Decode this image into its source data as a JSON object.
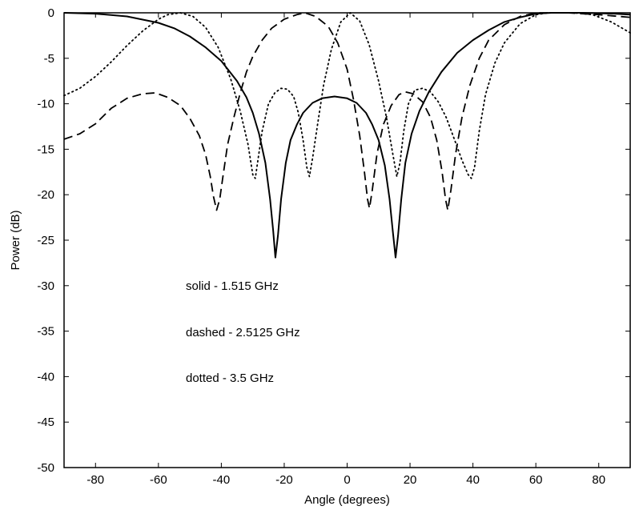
{
  "chart_data": {
    "type": "line",
    "title": "",
    "xlabel": "Angle (degrees)",
    "ylabel": "Power (dB)",
    "xlim": [
      -90,
      90
    ],
    "ylim": [
      -50,
      0
    ],
    "x_ticks": [
      -80,
      -60,
      -40,
      -20,
      0,
      20,
      40,
      60,
      80
    ],
    "y_ticks": [
      0,
      -5,
      -10,
      -15,
      -20,
      -25,
      -30,
      -35,
      -40,
      -45,
      -50
    ],
    "x_tick_labels": [
      "-80",
      "-60",
      "-40",
      "-20",
      "0",
      "20",
      "40",
      "60",
      "80"
    ],
    "y_tick_labels": [
      "0",
      "-5",
      "-10",
      "-15",
      "-20",
      "-25",
      "-30",
      "-35",
      "-40",
      "-45",
      "-50"
    ],
    "grid": false,
    "legend_text": [
      "solid - 1.515 GHz",
      "dashed - 2.5125 GHz",
      "dotted - 3.5 GHz"
    ],
    "series": [
      {
        "style": "solid",
        "color": "#000000",
        "points": [
          [
            -90,
            0
          ],
          [
            -80,
            -0.1
          ],
          [
            -70,
            -0.4
          ],
          [
            -60,
            -1.1
          ],
          [
            -55,
            -1.7
          ],
          [
            -50,
            -2.6
          ],
          [
            -45,
            -3.8
          ],
          [
            -40,
            -5.3
          ],
          [
            -35,
            -7.5
          ],
          [
            -32,
            -9.3
          ],
          [
            -30,
            -11.0
          ],
          [
            -28,
            -13.3
          ],
          [
            -26,
            -16.5
          ],
          [
            -24.5,
            -20.5
          ],
          [
            -23.5,
            -24.0
          ],
          [
            -22.8,
            -26.9
          ],
          [
            -22,
            -24.5
          ],
          [
            -21,
            -20.5
          ],
          [
            -19.5,
            -16.5
          ],
          [
            -18,
            -14.0
          ],
          [
            -16,
            -12.3
          ],
          [
            -14,
            -11.0
          ],
          [
            -11,
            -9.9
          ],
          [
            -8,
            -9.4
          ],
          [
            -4,
            -9.2
          ],
          [
            0,
            -9.4
          ],
          [
            3,
            -9.9
          ],
          [
            6,
            -11.0
          ],
          [
            8,
            -12.3
          ],
          [
            10,
            -14.0
          ],
          [
            12,
            -16.8
          ],
          [
            13.5,
            -20.5
          ],
          [
            14.5,
            -24.0
          ],
          [
            15.4,
            -26.9
          ],
          [
            16.2,
            -24.5
          ],
          [
            17.2,
            -20.5
          ],
          [
            18.5,
            -16.5
          ],
          [
            20.5,
            -13.3
          ],
          [
            23,
            -10.8
          ],
          [
            26,
            -8.7
          ],
          [
            30,
            -6.5
          ],
          [
            35,
            -4.4
          ],
          [
            40,
            -3.0
          ],
          [
            45,
            -1.9
          ],
          [
            50,
            -1.0
          ],
          [
            55,
            -0.5
          ],
          [
            60,
            -0.1
          ],
          [
            65,
            0
          ],
          [
            75,
            0
          ],
          [
            85,
            -0.1
          ],
          [
            90,
            -0.2
          ]
        ]
      },
      {
        "style": "dashed",
        "color": "#000000",
        "points": [
          [
            -90,
            -13.9
          ],
          [
            -85,
            -13.3
          ],
          [
            -80,
            -12.2
          ],
          [
            -75,
            -10.5
          ],
          [
            -70,
            -9.4
          ],
          [
            -65,
            -8.9
          ],
          [
            -61,
            -8.8
          ],
          [
            -57,
            -9.3
          ],
          [
            -53,
            -10.2
          ],
          [
            -50,
            -11.6
          ],
          [
            -47,
            -13.5
          ],
          [
            -45,
            -15.6
          ],
          [
            -43.5,
            -18.0
          ],
          [
            -42.5,
            -20.2
          ],
          [
            -41.5,
            -21.7
          ],
          [
            -40.5,
            -20.5
          ],
          [
            -39.5,
            -18.0
          ],
          [
            -38,
            -14.5
          ],
          [
            -36,
            -11.5
          ],
          [
            -34,
            -8.8
          ],
          [
            -32,
            -6.5
          ],
          [
            -30,
            -4.8
          ],
          [
            -27,
            -3.0
          ],
          [
            -24,
            -1.7
          ],
          [
            -20,
            -0.7
          ],
          [
            -16,
            -0.2
          ],
          [
            -13.5,
            0
          ],
          [
            -10,
            -0.4
          ],
          [
            -6,
            -1.5
          ],
          [
            -3,
            -3.3
          ],
          [
            0,
            -6.2
          ],
          [
            2,
            -9.5
          ],
          [
            4,
            -13.5
          ],
          [
            5.5,
            -17.5
          ],
          [
            6.5,
            -20.5
          ],
          [
            7.1,
            -21.5
          ],
          [
            8,
            -19.5
          ],
          [
            9.5,
            -15.5
          ],
          [
            11.5,
            -12.3
          ],
          [
            14,
            -10.2
          ],
          [
            16.5,
            -9.0
          ],
          [
            18.5,
            -8.7
          ],
          [
            21,
            -8.9
          ],
          [
            24,
            -9.8
          ],
          [
            26.5,
            -11.5
          ],
          [
            28.5,
            -14.0
          ],
          [
            30.2,
            -17.5
          ],
          [
            31.3,
            -20.5
          ],
          [
            32,
            -21.7
          ],
          [
            33,
            -19.5
          ],
          [
            34.5,
            -15.5
          ],
          [
            36.5,
            -11.5
          ],
          [
            39,
            -8.0
          ],
          [
            42,
            -5.0
          ],
          [
            45,
            -3.0
          ],
          [
            50,
            -1.3
          ],
          [
            55,
            -0.4
          ],
          [
            60,
            0
          ],
          [
            70,
            0
          ],
          [
            80,
            -0.2
          ],
          [
            90,
            -0.5
          ]
        ]
      },
      {
        "style": "dotted",
        "color": "#000000",
        "points": [
          [
            -90,
            -9.1
          ],
          [
            -85,
            -8.3
          ],
          [
            -80,
            -7.0
          ],
          [
            -75,
            -5.4
          ],
          [
            -70,
            -3.6
          ],
          [
            -65,
            -2.0
          ],
          [
            -60,
            -0.7
          ],
          [
            -57,
            -0.2
          ],
          [
            -53,
            0
          ],
          [
            -49,
            -0.4
          ],
          [
            -45,
            -1.6
          ],
          [
            -41,
            -3.8
          ],
          [
            -37,
            -7.3
          ],
          [
            -34,
            -10.8
          ],
          [
            -31.5,
            -14.5
          ],
          [
            -30,
            -17.8
          ],
          [
            -29.2,
            -18.2
          ],
          [
            -28.5,
            -16.5
          ],
          [
            -27,
            -13.0
          ],
          [
            -25,
            -10.0
          ],
          [
            -23,
            -8.8
          ],
          [
            -21,
            -8.3
          ],
          [
            -19,
            -8.4
          ],
          [
            -17,
            -9.2
          ],
          [
            -15.5,
            -11.0
          ],
          [
            -14,
            -14.0
          ],
          [
            -12.8,
            -17.0
          ],
          [
            -12,
            -18.0
          ],
          [
            -11,
            -16.0
          ],
          [
            -9.5,
            -12.5
          ],
          [
            -7.5,
            -8.0
          ],
          [
            -5,
            -4.0
          ],
          [
            -2,
            -1.0
          ],
          [
            1,
            0
          ],
          [
            4,
            -0.9
          ],
          [
            7,
            -3.5
          ],
          [
            10,
            -7.5
          ],
          [
            12.5,
            -11.5
          ],
          [
            14.5,
            -15.5
          ],
          [
            15.8,
            -18.0
          ],
          [
            16.8,
            -16.5
          ],
          [
            18,
            -13.0
          ],
          [
            19.5,
            -10.0
          ],
          [
            21.5,
            -8.5
          ],
          [
            24,
            -8.3
          ],
          [
            26.5,
            -8.7
          ],
          [
            29,
            -9.8
          ],
          [
            31.5,
            -11.5
          ],
          [
            34,
            -13.8
          ],
          [
            36.5,
            -16.2
          ],
          [
            38.5,
            -17.8
          ],
          [
            39.5,
            -18.2
          ],
          [
            40.5,
            -17.0
          ],
          [
            42,
            -13.0
          ],
          [
            44,
            -9.0
          ],
          [
            47,
            -5.5
          ],
          [
            50,
            -3.3
          ],
          [
            55,
            -1.2
          ],
          [
            60,
            -0.2
          ],
          [
            64,
            0
          ],
          [
            72,
            0
          ],
          [
            78,
            -0.2
          ],
          [
            84,
            -1.0
          ],
          [
            88,
            -1.8
          ],
          [
            90,
            -2.2
          ]
        ]
      }
    ]
  }
}
